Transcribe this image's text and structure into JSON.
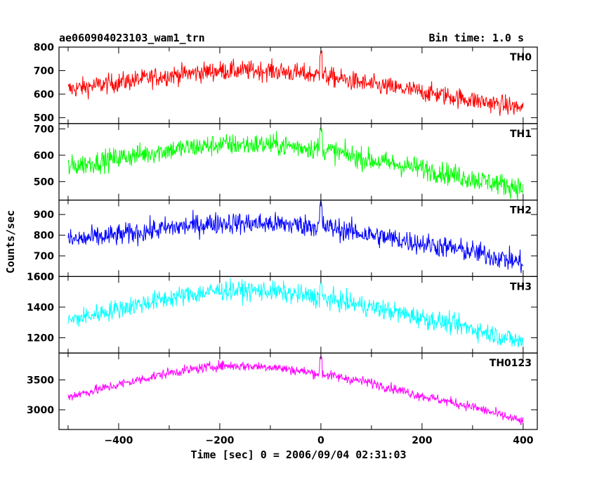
{
  "header": {
    "title": "ae060904023103_wam1_trn",
    "bin_time": "Bin time: 1.0 s"
  },
  "chart_data": {
    "type": "line",
    "xlabel": "Time [sec] 0 = 2006/09/04 02:31:03",
    "ylabel": "Counts/sec",
    "xlim": [
      -518,
      428
    ],
    "x_ticks": [
      -400,
      -200,
      0,
      200,
      400
    ],
    "x_tick_labels": [
      "−400",
      "−200",
      "0",
      "200",
      "400"
    ],
    "x_range": [
      -500,
      400
    ],
    "bin_time_s": 1.0,
    "grid": false,
    "panels": [
      {
        "name": "TH0",
        "color": "#ff0000",
        "ylim": [
          475,
          800
        ],
        "y_ticks": [
          500,
          600,
          700,
          800
        ],
        "y_tick_labels": [
          "500",
          "600",
          "700",
          "800"
        ],
        "trend": [
          [
            -500,
            620
          ],
          [
            -400,
            650
          ],
          [
            -300,
            680
          ],
          [
            -200,
            700
          ],
          [
            -100,
            700
          ],
          [
            -50,
            690
          ],
          [
            0,
            680
          ],
          [
            100,
            640
          ],
          [
            200,
            610
          ],
          [
            300,
            575
          ],
          [
            400,
            540
          ]
        ],
        "noise": 35,
        "spike": {
          "x": 0,
          "value": 790
        }
      },
      {
        "name": "TH1",
        "color": "#00ff00",
        "ylim": [
          430,
          720
        ],
        "y_ticks": [
          500,
          600,
          700
        ],
        "y_tick_labels": [
          "500",
          "600",
          "700"
        ],
        "trend": [
          [
            -500,
            555
          ],
          [
            -400,
            590
          ],
          [
            -300,
            620
          ],
          [
            -200,
            640
          ],
          [
            -100,
            640
          ],
          [
            0,
            625
          ],
          [
            100,
            580
          ],
          [
            200,
            550
          ],
          [
            300,
            510
          ],
          [
            400,
            475
          ]
        ],
        "noise": 35,
        "spike": {
          "x": 0,
          "value": 715
        }
      },
      {
        "name": "TH2",
        "color": "#0000ff",
        "ylim": [
          600,
          970
        ],
        "y_ticks": [
          600,
          700,
          800,
          900
        ],
        "y_tick_labels": [
          "600",
          "700",
          "800",
          "900"
        ],
        "trend": [
          [
            -500,
            775
          ],
          [
            -400,
            800
          ],
          [
            -300,
            835
          ],
          [
            -200,
            860
          ],
          [
            -100,
            855
          ],
          [
            0,
            845
          ],
          [
            100,
            800
          ],
          [
            200,
            760
          ],
          [
            300,
            720
          ],
          [
            400,
            665
          ]
        ],
        "noise": 45,
        "spike": {
          "x": 0,
          "value": 960
        }
      },
      {
        "name": "TH3",
        "color": "#00ffff",
        "ylim": [
          1100,
          1600
        ],
        "y_ticks": [
          1200,
          1400,
          1600
        ],
        "y_tick_labels": [
          "1200",
          "1400",
          "1600"
        ],
        "trend": [
          [
            -500,
            1310
          ],
          [
            -400,
            1390
          ],
          [
            -300,
            1460
          ],
          [
            -200,
            1510
          ],
          [
            -100,
            1505
          ],
          [
            0,
            1460
          ],
          [
            100,
            1400
          ],
          [
            200,
            1330
          ],
          [
            300,
            1260
          ],
          [
            400,
            1170
          ]
        ],
        "noise": 55,
        "spike": {
          "x": 0,
          "value": 1560
        }
      },
      {
        "name": "TH0123",
        "color": "#ff00ff",
        "ylim": [
          2670,
          3950
        ],
        "y_ticks": [
          3000,
          3500
        ],
        "y_tick_labels": [
          "3000",
          "3500"
        ],
        "trend": [
          [
            -500,
            3220
          ],
          [
            -400,
            3420
          ],
          [
            -300,
            3620
          ],
          [
            -200,
            3740
          ],
          [
            -100,
            3720
          ],
          [
            0,
            3600
          ],
          [
            100,
            3450
          ],
          [
            200,
            3230
          ],
          [
            300,
            3050
          ],
          [
            400,
            2800
          ]
        ],
        "noise": 70,
        "spike": {
          "x": 0,
          "value": 3890
        }
      }
    ]
  }
}
